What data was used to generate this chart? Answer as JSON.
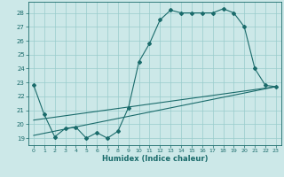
{
  "xlabel": "Humidex (Indice chaleur)",
  "bg_color": "#cce8e8",
  "grid_color": "#99cccc",
  "line_color": "#1a6b6b",
  "xlim": [
    -0.5,
    23.5
  ],
  "ylim": [
    18.5,
    28.8
  ],
  "xticks": [
    0,
    1,
    2,
    3,
    4,
    5,
    6,
    7,
    8,
    9,
    10,
    11,
    12,
    13,
    14,
    15,
    16,
    17,
    18,
    19,
    20,
    21,
    22,
    23
  ],
  "yticks": [
    19,
    20,
    21,
    22,
    23,
    24,
    25,
    26,
    27,
    28
  ],
  "line1_x": [
    0,
    1,
    2,
    3,
    4,
    5,
    6,
    7,
    8,
    9,
    10,
    11,
    12,
    13,
    14,
    15,
    16,
    17,
    18,
    19,
    20,
    21,
    22,
    23
  ],
  "line1_y": [
    22.8,
    20.7,
    19.1,
    19.7,
    19.8,
    19.0,
    19.4,
    19.0,
    19.5,
    21.2,
    24.5,
    25.8,
    27.5,
    28.2,
    28.0,
    28.0,
    28.0,
    28.0,
    28.3,
    28.0,
    27.0,
    24.0,
    22.8,
    22.7
  ],
  "line2_x": [
    0,
    23
  ],
  "line2_y": [
    20.3,
    22.7
  ],
  "line3_x": [
    0,
    23
  ],
  "line3_y": [
    19.2,
    22.7
  ]
}
